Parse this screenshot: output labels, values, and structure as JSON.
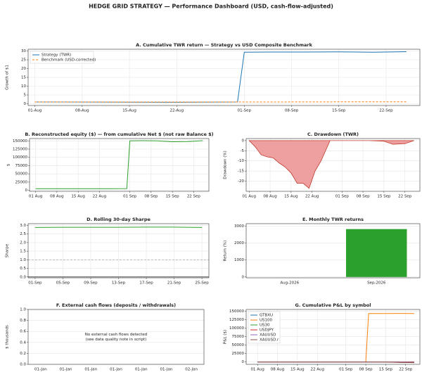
{
  "title": "HEDGE GRID STRATEGY — Performance Dashboard (USD, cash-flow-adjusted)",
  "chart_data": [
    {
      "type": "line",
      "title": "A. Cumulative TWR return — Strategy vs USD Composite Benchmark",
      "ylabel": "Growth of $1",
      "x": [
        "01-Aug",
        "05-Aug",
        "10-Aug",
        "15-Aug",
        "20-Aug",
        "25-Aug",
        "31-Aug",
        "01-Sep",
        "05-Sep",
        "10-Sep",
        "15-Sep",
        "20-Sep",
        "25-Sep"
      ],
      "series": [
        {
          "name": "Strategy (TWR)",
          "color": "#1f77b4",
          "linestyle": "solid",
          "values": [
            1.0,
            0.98,
            0.95,
            0.9,
            0.85,
            0.9,
            1.0,
            29.3,
            29.4,
            29.4,
            29.5,
            29.3,
            29.6
          ]
        },
        {
          "name": "Benchmark (USD-corrected)",
          "color": "#ff7f0e",
          "linestyle": "dashed",
          "values": [
            1.0,
            1.0,
            1.0,
            1.0,
            1.0,
            1.0,
            1.0,
            1.0,
            1.0,
            1.05,
            1.08,
            1.1,
            1.1
          ]
        }
      ],
      "xlim": [
        "31-Jul",
        "27-Sep"
      ],
      "xticks": [
        "01-Aug",
        "08-Aug",
        "15-Aug",
        "22-Aug",
        "01-Sep",
        "08-Sep",
        "15-Sep",
        "22-Sep"
      ],
      "ylim": [
        -1,
        31
      ],
      "yticks": [
        0,
        5,
        10,
        15,
        20,
        25,
        30
      ],
      "grid": true,
      "legend": "upper left"
    },
    {
      "type": "line",
      "title": "B. Reconstructed equity ($) — from cumulative Net $ (not raw Balance $)",
      "ylabel": "$",
      "x": [
        "01-Aug",
        "05-Aug",
        "10-Aug",
        "15-Aug",
        "20-Aug",
        "25-Aug",
        "31-Aug",
        "01-Sep",
        "05-Sep",
        "10-Sep",
        "15-Sep",
        "20-Sep",
        "25-Sep"
      ],
      "series": [
        {
          "name": "Equity",
          "color": "#2ca02c",
          "linestyle": "solid",
          "values": [
            5000,
            5000,
            5100,
            5000,
            4900,
            5000,
            5200,
            150000,
            150500,
            150200,
            147500,
            148000,
            150500
          ]
        }
      ],
      "xlim": [
        "30-Jul",
        "27-Sep"
      ],
      "xticks": [
        "01 Aug",
        "08 Aug",
        "15 Aug",
        "22 Aug",
        "01 Sep",
        "08 Sep",
        "15 Sep",
        "22 Sep"
      ],
      "ylim": [
        -3000,
        157000
      ],
      "yticks": [
        0,
        25000,
        50000,
        75000,
        100000,
        125000,
        150000
      ],
      "grid": true
    },
    {
      "type": "area",
      "title": "C. Drawdown (TWR)",
      "ylabel": "Drawdown (%)",
      "x": [
        "01-Aug",
        "03-Aug",
        "05-Aug",
        "07-Aug",
        "09-Aug",
        "11-Aug",
        "13-Aug",
        "15-Aug",
        "17-Aug",
        "19-Aug",
        "21-Aug",
        "23-Aug",
        "25-Aug",
        "28-Aug",
        "01-Sep",
        "10-Sep",
        "15-Sep",
        "18-Sep",
        "22-Sep",
        "25-Sep"
      ],
      "series": [
        {
          "name": "Drawdown",
          "color": "#c0392b",
          "fill": "#eea0a0",
          "values": [
            0,
            -3,
            -7,
            -8,
            -8.5,
            -11,
            -13,
            -16,
            -21,
            -21,
            -23.5,
            -15,
            -10,
            0,
            0,
            0,
            -0.3,
            -1.8,
            -1.5,
            0
          ]
        }
      ],
      "xlim": [
        "31-Jul",
        "27-Sep"
      ],
      "xticks": [
        "01 Aug",
        "08 Aug",
        "15 Aug",
        "22 Aug",
        "01 Sep",
        "08 Sep",
        "15 Sep",
        "22 Sep"
      ],
      "ylim": [
        -25,
        1
      ],
      "yticks": [
        0,
        -5,
        -10,
        -15,
        -20
      ],
      "grid": true
    },
    {
      "type": "line",
      "title": "D. Rolling 30-day Sharpe",
      "ylabel": "Sharpe",
      "x": [
        "01-Sep",
        "05-Sep",
        "09-Sep",
        "13-Sep",
        "17-Sep",
        "21-Sep",
        "25-Sep"
      ],
      "series": [
        {
          "name": "Sharpe",
          "color": "#2ca02c",
          "linestyle": "solid",
          "values": [
            2.88,
            2.89,
            2.89,
            2.89,
            2.9,
            2.9,
            2.88
          ]
        }
      ],
      "reference_lines": [
        {
          "value": 1.0,
          "color": "#999999",
          "linestyle": "dashed"
        },
        {
          "value": 0,
          "color": "#222222",
          "linestyle": "solid"
        }
      ],
      "xlim": [
        "31-Aug",
        "26-Sep"
      ],
      "xticks": [
        "01-Sep",
        "05-Sep",
        "09-Sep",
        "13-Sep",
        "17-Sep",
        "21-Sep",
        "25-Sep"
      ],
      "ylim": [
        -0.05,
        3.1
      ],
      "yticks": [
        {
          "value": 0,
          "label": "0.0"
        },
        {
          "value": 0.5,
          "label": "0.5"
        },
        {
          "value": 1,
          "label": "1.0"
        },
        {
          "value": 1.5,
          "label": "1.5"
        },
        {
          "value": 2,
          "label": "2.0"
        },
        {
          "value": 2.5,
          "label": "2.5"
        },
        {
          "value": 3,
          "label": "3.0"
        }
      ],
      "grid": true
    },
    {
      "type": "bar",
      "title": "E. Monthly TWR returns",
      "ylabel": "Return (%)",
      "categories": [
        "Aug-2026",
        "Sep-2026"
      ],
      "values": [
        0,
        2830
      ],
      "color": "#2ca02c",
      "ylim": [
        -50,
        3150
      ],
      "yticks": [
        0,
        1000,
        2000,
        3000
      ],
      "grid": true
    },
    {
      "type": "empty",
      "title": "F. External cash flows (deposits / withdrawals)",
      "ylabel": "$ thousands",
      "categories": [
        "01-Jan",
        "01-Jan",
        "01-Jan",
        "01-Jan",
        "01-Jan",
        "01-Jan",
        "02-Jan"
      ],
      "annotation": [
        "No external cash flows detected",
        "(see data quality note in script)"
      ],
      "ylim": [
        0,
        1
      ],
      "yticks": [
        {
          "value": 0,
          "label": "0.0"
        },
        {
          "value": 0.2,
          "label": "0.2"
        },
        {
          "value": 0.4,
          "label": "0.4"
        },
        {
          "value": 0.6,
          "label": "0.6"
        },
        {
          "value": 0.8,
          "label": "0.8"
        },
        {
          "value": 1,
          "label": "1.0"
        }
      ],
      "grid": true
    },
    {
      "type": "line",
      "title": "G. Cumulative P&L by symbol",
      "ylabel": "P&L ($)",
      "x": [
        "01-Aug",
        "10-Aug",
        "20-Aug",
        "31-Aug",
        "05-Sep",
        "08-Sep",
        "09-Sep",
        "15-Sep",
        "20-Sep",
        "25-Sep"
      ],
      "series": [
        {
          "name": "GTBXU",
          "color": "#1f77b4",
          "linestyle": "solid",
          "values": [
            0,
            0,
            0,
            0,
            0,
            0,
            0,
            0,
            0,
            0
          ]
        },
        {
          "name": "US100",
          "color": "#ff7f0e",
          "linestyle": "solid",
          "values": [
            null,
            null,
            null,
            null,
            null,
            0,
            143000,
            143000,
            143200,
            143000
          ]
        },
        {
          "name": "US30",
          "color": "#2ca02c",
          "linestyle": "solid",
          "values": [
            0,
            0,
            0,
            0,
            0,
            0,
            0,
            0,
            0,
            0
          ]
        },
        {
          "name": "USDJPY",
          "color": "#d62728",
          "linestyle": "solid",
          "values": [
            0,
            100,
            -100,
            0,
            0,
            0,
            0,
            0,
            0,
            0
          ]
        },
        {
          "name": "XAUUSD",
          "color": "#9467bd",
          "linestyle": "solid",
          "values": [
            0,
            0,
            0,
            0,
            0,
            0,
            0,
            0,
            -500,
            -1000
          ]
        },
        {
          "name": "XAUUSD.r",
          "color": "#8c564b",
          "linestyle": "solid",
          "values": [
            0,
            0,
            0,
            0,
            0,
            0,
            0,
            0,
            -1500,
            -2000
          ]
        }
      ],
      "xlim": [
        "28-Jul",
        "27-Sep"
      ],
      "xticks": [
        "01 Aug",
        "08 Aug",
        "15 Aug",
        "22 Aug",
        "01 Sep",
        "08 Sep",
        "15 Sep",
        "22 Sep"
      ],
      "ylim": [
        -7000,
        155000
      ],
      "yticks": [
        0,
        25000,
        50000,
        75000,
        100000,
        125000,
        150000
      ],
      "grid": true,
      "legend": "upper left"
    }
  ]
}
